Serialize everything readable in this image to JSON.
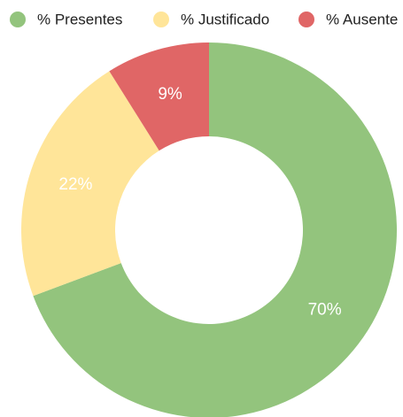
{
  "chart_data": {
    "type": "donut",
    "categories": [
      "% Presentes",
      "% Justificado",
      "% Ausente"
    ],
    "values": [
      70,
      22,
      9
    ],
    "value_labels": [
      "70%",
      "22%",
      "9%"
    ],
    "colors": [
      "#93c47d",
      "#ffe599",
      "#e06666"
    ],
    "legend": "top"
  }
}
